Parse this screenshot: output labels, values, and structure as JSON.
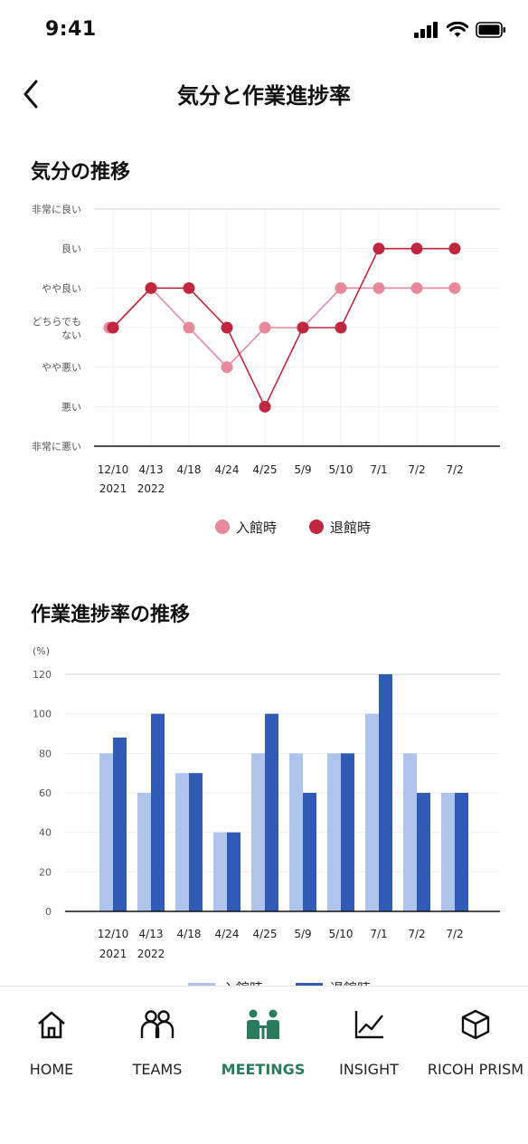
{
  "status_bar": {
    "time": "9:41"
  },
  "header": {
    "title": "気分と作業進捗率"
  },
  "mood_chart": {
    "section_title": "気分の推移",
    "chart_data": {
      "type": "line",
      "categories": [
        [
          "12/10",
          "2021"
        ],
        [
          "4/13",
          "2022"
        ],
        [
          "4/18",
          ""
        ],
        [
          "4/24",
          ""
        ],
        [
          "4/25",
          ""
        ],
        [
          "5/9",
          ""
        ],
        [
          "5/10",
          ""
        ],
        [
          "7/1",
          ""
        ],
        [
          "7/2",
          ""
        ],
        [
          "7/2",
          ""
        ]
      ],
      "y_levels": [
        "非常に悪い",
        "悪い",
        "やや悪い",
        "どちらでもない",
        "やや良い",
        "良い",
        "非常に良い"
      ],
      "ylim": [
        0,
        6
      ],
      "series": [
        {
          "name": "入館時",
          "color": "#e8899b",
          "values": [
            3,
            4,
            3,
            2,
            3,
            3,
            4,
            4,
            4,
            4
          ]
        },
        {
          "name": "退館時",
          "color": "#c0263d",
          "values": [
            3,
            4,
            4,
            3,
            1,
            3,
            3,
            5,
            5,
            5
          ]
        }
      ],
      "legend_position": "bottom"
    }
  },
  "progress_chart": {
    "section_title": "作業進捗率の推移",
    "chart_data": {
      "type": "bar",
      "unit_label": "(%)",
      "categories": [
        [
          "12/10",
          "2021"
        ],
        [
          "4/13",
          "2022"
        ],
        [
          "4/18",
          ""
        ],
        [
          "4/24",
          ""
        ],
        [
          "4/25",
          ""
        ],
        [
          "5/9",
          ""
        ],
        [
          "5/10",
          ""
        ],
        [
          "7/1",
          ""
        ],
        [
          "7/2",
          ""
        ],
        [
          "7/2",
          ""
        ]
      ],
      "yticks": [
        0,
        20,
        40,
        60,
        80,
        100,
        120
      ],
      "ylim": [
        0,
        120
      ],
      "series": [
        {
          "name": "入館時",
          "color": "#aec4ec",
          "values": [
            80,
            60,
            70,
            40,
            80,
            80,
            80,
            100,
            80,
            60
          ]
        },
        {
          "name": "退館時",
          "color": "#2f5bb5",
          "values": [
            88,
            100,
            70,
            40,
            100,
            60,
            80,
            120,
            60,
            60
          ]
        }
      ]
    }
  },
  "tabs": [
    {
      "label": "HOME",
      "icon": "home-icon",
      "active": false
    },
    {
      "label": "TEAMS",
      "icon": "teams-icon",
      "active": false
    },
    {
      "label": "MEETINGS",
      "icon": "meetings-icon",
      "active": true
    },
    {
      "label": "INSIGHT",
      "icon": "insight-icon",
      "active": false
    },
    {
      "label": "RICOH PRISM",
      "icon": "prism-icon",
      "active": false
    }
  ],
  "colors": {
    "accent": "#2a7a5c"
  }
}
